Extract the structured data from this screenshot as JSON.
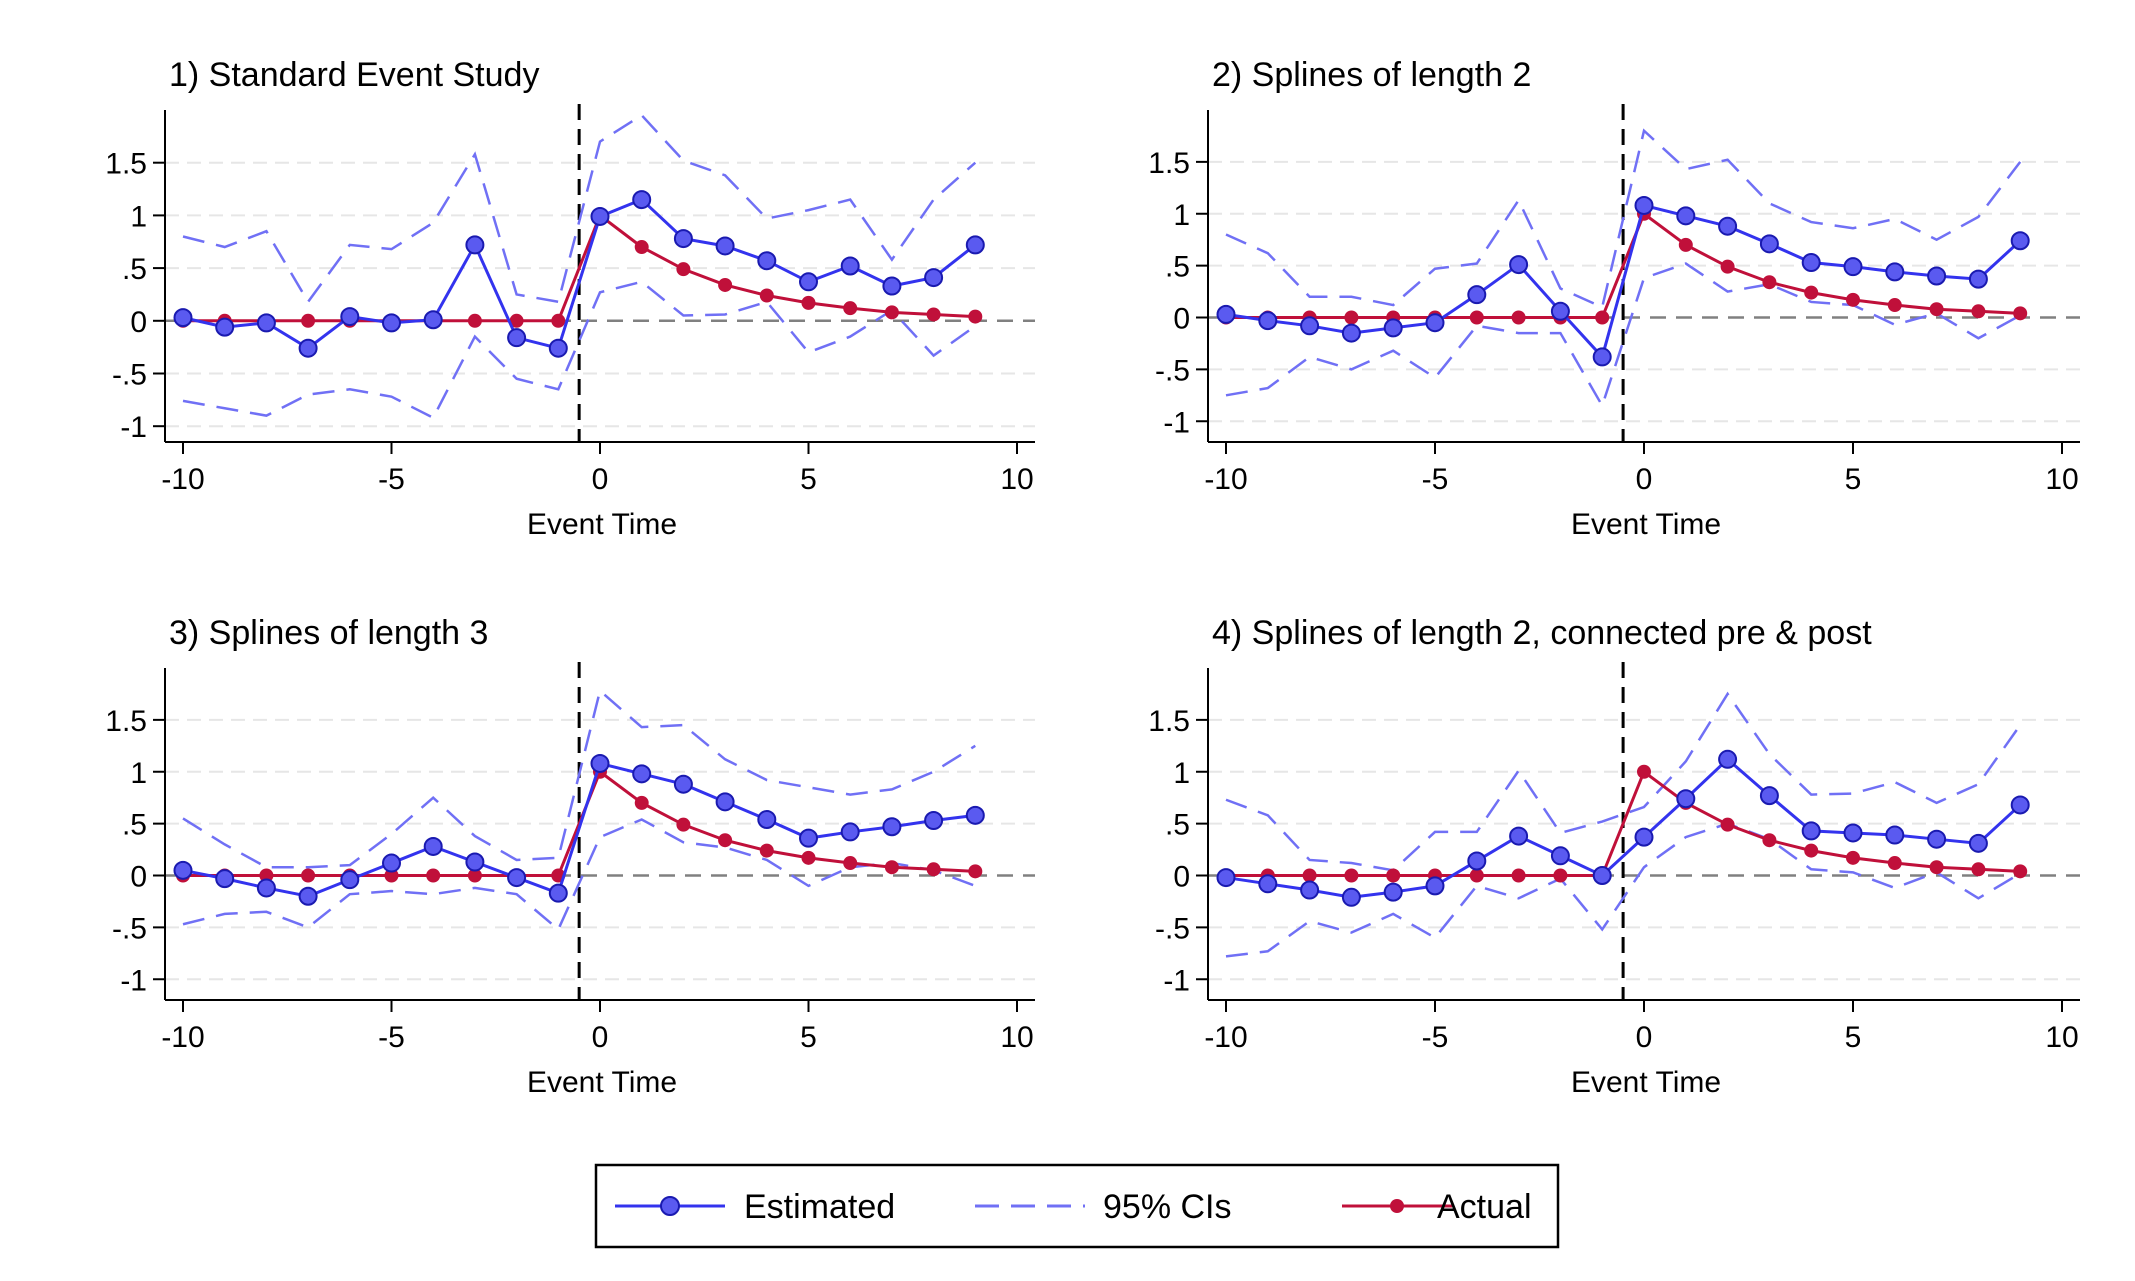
{
  "figure": {
    "legend": {
      "placement": "bottom-center",
      "entries": [
        {
          "label": "Estimated",
          "style": "line-marker",
          "color": "#3333ee"
        },
        {
          "label": "95% CIs",
          "style": "dashed",
          "color": "#7070f5"
        },
        {
          "label": "Actual",
          "style": "line-marker",
          "color": "#c0103a"
        }
      ]
    },
    "colors": {
      "estimated": "#3333ee",
      "estimated_marker_fill": "#5a5af0",
      "ci": "#7070f5",
      "actual": "#c0103a",
      "zero_line": "#808080",
      "grid": "#e6e6e6",
      "event_line": "#000000"
    }
  },
  "chart_data": [
    {
      "type": "line",
      "title": "1) Standard Event Study",
      "xlabel": "Event Time",
      "ylabel": "",
      "xlim": [
        -10,
        10
      ],
      "ylim": [
        -1.15,
        2.0
      ],
      "xticks": [
        -10,
        -5,
        0,
        5,
        10
      ],
      "xtick_labels": [
        "-10",
        "-5",
        "0",
        "5",
        "10"
      ],
      "yticks": [
        -1,
        -0.5,
        0,
        0.5,
        1,
        1.5
      ],
      "ytick_labels": [
        "-1",
        "-.5",
        "0",
        ".5",
        "1",
        "1.5"
      ],
      "event_line_x": -0.5,
      "grid": "horizontal dashed",
      "x": [
        -10,
        -9,
        -8,
        -7,
        -6,
        -5,
        -4,
        -3,
        -2,
        -1,
        0,
        1,
        2,
        3,
        4,
        5,
        6,
        7,
        8,
        9
      ],
      "series": [
        {
          "name": "95% CIs",
          "kind": "ci_upper",
          "values": [
            0.8,
            0.7,
            0.85,
            0.18,
            0.72,
            0.68,
            0.93,
            1.58,
            0.25,
            0.18,
            1.7,
            1.95,
            1.52,
            1.38,
            0.97,
            1.05,
            1.15,
            0.58,
            1.15,
            1.5
          ]
        },
        {
          "name": "95% CIs",
          "kind": "ci_lower",
          "values": [
            -0.76,
            -0.83,
            -0.9,
            -0.7,
            -0.65,
            -0.72,
            -0.92,
            -0.15,
            -0.55,
            -0.65,
            0.27,
            0.37,
            0.05,
            0.06,
            0.18,
            -0.3,
            -0.15,
            0.1,
            -0.33,
            -0.05
          ]
        },
        {
          "name": "Actual",
          "values": [
            0,
            0,
            0,
            0,
            0,
            0,
            0,
            0,
            0,
            0,
            1.0,
            0.7,
            0.49,
            0.34,
            0.24,
            0.17,
            0.12,
            0.08,
            0.06,
            0.04
          ]
        },
        {
          "name": "Estimated",
          "values": [
            0.03,
            -0.06,
            -0.02,
            -0.26,
            0.04,
            -0.02,
            0.01,
            0.72,
            -0.16,
            -0.26,
            0.99,
            1.15,
            0.78,
            0.71,
            0.57,
            0.37,
            0.52,
            0.33,
            0.41,
            0.72
          ]
        }
      ]
    },
    {
      "type": "line",
      "title": "2) Splines of length 2",
      "xlabel": "Event Time",
      "ylabel": "",
      "xlim": [
        -10,
        10
      ],
      "ylim": [
        -1.2,
        2.0
      ],
      "xticks": [
        -10,
        -5,
        0,
        5,
        10
      ],
      "xtick_labels": [
        "-10",
        "-5",
        "0",
        "5",
        "10"
      ],
      "yticks": [
        -1,
        -0.5,
        0,
        0.5,
        1,
        1.5
      ],
      "ytick_labels": [
        "-1",
        "-.5",
        "0",
        ".5",
        "1",
        "1.5"
      ],
      "event_line_x": -0.5,
      "grid": "horizontal dashed",
      "x": [
        -10,
        -9,
        -8,
        -7,
        -6,
        -5,
        -4,
        -3,
        -2,
        -1,
        0,
        1,
        2,
        3,
        4,
        5,
        6,
        7,
        8,
        9
      ],
      "series": [
        {
          "name": "95% CIs",
          "kind": "ci_upper",
          "values": [
            0.8,
            0.62,
            0.2,
            0.2,
            0.12,
            0.47,
            0.52,
            1.13,
            0.28,
            0.1,
            1.8,
            1.43,
            1.52,
            1.1,
            0.92,
            0.86,
            0.95,
            0.75,
            0.97,
            1.5
          ]
        },
        {
          "name": "95% CIs",
          "kind": "ci_lower",
          "values": [
            -0.75,
            -0.68,
            -0.38,
            -0.5,
            -0.32,
            -0.58,
            -0.08,
            -0.15,
            -0.15,
            -0.85,
            0.38,
            0.52,
            0.25,
            0.32,
            0.15,
            0.12,
            -0.07,
            0.04,
            -0.2,
            0.02
          ]
        },
        {
          "name": "Actual",
          "values": [
            0,
            0,
            0,
            0,
            0,
            0,
            0,
            0,
            0,
            0,
            1.0,
            0.7,
            0.49,
            0.34,
            0.24,
            0.17,
            0.12,
            0.08,
            0.06,
            0.04
          ]
        },
        {
          "name": "Estimated",
          "values": [
            0.03,
            -0.03,
            -0.08,
            -0.15,
            -0.1,
            -0.05,
            0.22,
            0.51,
            0.06,
            -0.38,
            1.08,
            0.98,
            0.88,
            0.71,
            0.53,
            0.49,
            0.44,
            0.4,
            0.37,
            0.74
          ]
        }
      ]
    },
    {
      "type": "line",
      "title": "3) Splines of length 3",
      "xlabel": "Event Time",
      "ylabel": "",
      "xlim": [
        -10,
        10
      ],
      "ylim": [
        -1.2,
        2.0
      ],
      "xticks": [
        -10,
        -5,
        0,
        5,
        10
      ],
      "xtick_labels": [
        "-10",
        "-5",
        "0",
        "5",
        "10"
      ],
      "yticks": [
        -1,
        -0.5,
        0,
        0.5,
        1,
        1.5
      ],
      "ytick_labels": [
        "-1",
        "-.5",
        "0",
        ".5",
        "1",
        "1.5"
      ],
      "event_line_x": -0.5,
      "grid": "horizontal dashed",
      "x": [
        -10,
        -9,
        -8,
        -7,
        -6,
        -5,
        -4,
        -3,
        -2,
        -1,
        0,
        1,
        2,
        3,
        4,
        5,
        6,
        7,
        8,
        9
      ],
      "series": [
        {
          "name": "95% CIs",
          "kind": "ci_upper",
          "values": [
            0.55,
            0.3,
            0.08,
            0.08,
            0.1,
            0.4,
            0.75,
            0.38,
            0.15,
            0.17,
            1.78,
            1.43,
            1.45,
            1.12,
            0.92,
            0.85,
            0.78,
            0.83,
            1.0,
            1.25
          ]
        },
        {
          "name": "95% CIs",
          "kind": "ci_lower",
          "values": [
            -0.47,
            -0.37,
            -0.35,
            -0.5,
            -0.18,
            -0.15,
            -0.18,
            -0.12,
            -0.18,
            -0.52,
            0.37,
            0.54,
            0.32,
            0.27,
            0.15,
            -0.1,
            0.08,
            0.12,
            0.05,
            -0.1
          ]
        },
        {
          "name": "Actual",
          "values": [
            0,
            0,
            0,
            0,
            0,
            0,
            0,
            0,
            0,
            0,
            1.0,
            0.7,
            0.49,
            0.34,
            0.24,
            0.17,
            0.12,
            0.08,
            0.06,
            0.04
          ]
        },
        {
          "name": "Estimated",
          "values": [
            0.05,
            -0.03,
            -0.12,
            -0.2,
            -0.04,
            0.12,
            0.28,
            0.13,
            -0.02,
            -0.17,
            1.08,
            0.98,
            0.88,
            0.71,
            0.54,
            0.36,
            0.42,
            0.47,
            0.53,
            0.58
          ]
        }
      ]
    },
    {
      "type": "line",
      "title": "4) Splines of length 2, connected pre & post",
      "xlabel": "Event Time",
      "ylabel": "",
      "xlim": [
        -10,
        10
      ],
      "ylim": [
        -1.2,
        2.0
      ],
      "xticks": [
        -10,
        -5,
        0,
        5,
        10
      ],
      "xtick_labels": [
        "-10",
        "-5",
        "0",
        "5",
        "10"
      ],
      "yticks": [
        -1,
        -0.5,
        0,
        0.5,
        1,
        1.5
      ],
      "ytick_labels": [
        "-1",
        "-.5",
        "0",
        ".5",
        "1",
        "1.5"
      ],
      "event_line_x": -0.5,
      "grid": "horizontal dashed",
      "x": [
        -10,
        -9,
        -8,
        -7,
        -6,
        -5,
        -4,
        -3,
        -2,
        -1,
        0,
        1,
        2,
        3,
        4,
        5,
        6,
        7,
        8,
        9
      ],
      "series": [
        {
          "name": "95% CIs",
          "kind": "ci_upper",
          "values": [
            0.73,
            0.58,
            0.15,
            0.12,
            0.05,
            0.42,
            0.42,
            1.01,
            0.41,
            0.52,
            0.66,
            1.1,
            1.75,
            1.17,
            0.78,
            0.79,
            0.9,
            0.7,
            0.88,
            1.45
          ]
        },
        {
          "name": "95% CIs",
          "kind": "ci_lower",
          "values": [
            -0.78,
            -0.73,
            -0.44,
            -0.55,
            -0.37,
            -0.6,
            -0.1,
            -0.22,
            -0.03,
            -0.52,
            0.08,
            0.37,
            0.5,
            0.35,
            0.06,
            0.03,
            -0.12,
            0.03,
            -0.22,
            0.02
          ]
        },
        {
          "name": "Actual",
          "values": [
            0,
            0,
            0,
            0,
            0,
            0,
            0,
            0,
            0,
            0,
            1.0,
            0.7,
            0.49,
            0.34,
            0.24,
            0.17,
            0.12,
            0.08,
            0.06,
            0.04
          ]
        },
        {
          "name": "Estimated",
          "values": [
            -0.02,
            -0.08,
            -0.14,
            -0.21,
            -0.16,
            -0.1,
            0.14,
            0.38,
            0.19,
            0.0,
            0.37,
            0.74,
            1.12,
            0.77,
            0.43,
            0.41,
            0.39,
            0.35,
            0.31,
            0.68
          ]
        }
      ]
    }
  ]
}
